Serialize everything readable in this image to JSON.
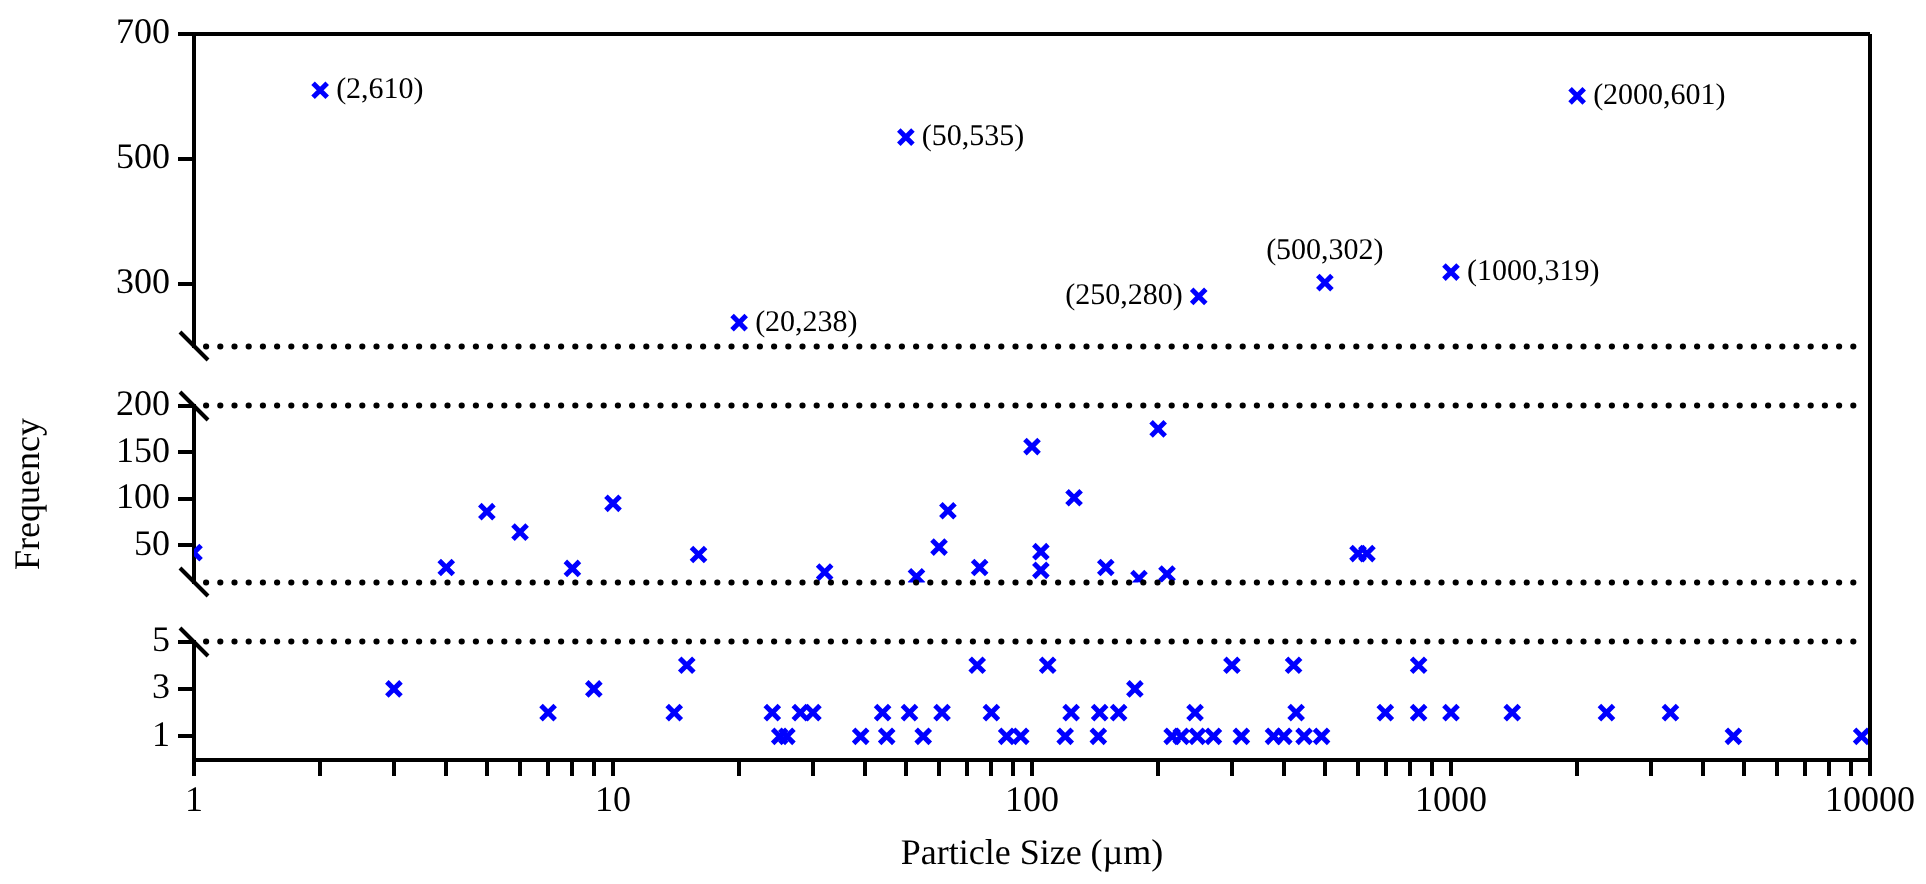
{
  "chart_data": [
    {
      "type": "scatter",
      "x": [
        2,
        20,
        50,
        250,
        500,
        1000,
        2000
      ],
      "values": [
        610,
        238,
        535,
        280,
        302,
        319,
        601
      ],
      "annotations": [
        {
          "text": "(2,610)",
          "x": 2,
          "y": 610
        },
        {
          "text": "(20,238)",
          "x": 20,
          "y": 238
        },
        {
          "text": "(50,535)",
          "x": 50,
          "y": 535
        },
        {
          "text": "(250,280)",
          "x": 250,
          "y": 280
        },
        {
          "text": "(500,302)",
          "x": 500,
          "y": 302
        },
        {
          "text": "(1000,319)",
          "x": 1000,
          "y": 319
        },
        {
          "text": "(2000,601)",
          "x": 2000,
          "y": 601
        }
      ],
      "color": "#0000ff",
      "marker": "cross",
      "log": "x",
      "xlim": [
        1,
        10000
      ],
      "xticks": [
        1,
        10,
        100,
        1000,
        10000
      ],
      "ylim": [
        200,
        700
      ],
      "yticks": [
        300,
        500,
        700
      ],
      "tick_labels": "y",
      "grid": false
    },
    {
      "type": "scatter",
      "x": [
        1,
        4,
        5,
        6,
        8,
        10,
        16,
        32,
        53,
        60,
        63,
        75,
        100,
        105,
        105,
        126,
        150,
        180,
        200,
        210,
        600,
        630
      ],
      "values": [
        42,
        26,
        86,
        64,
        25,
        95,
        40,
        21,
        16,
        48,
        87,
        26,
        156,
        43,
        23,
        101,
        26,
        14,
        175,
        19,
        41,
        41
      ],
      "color": "#0000ff",
      "marker": "cross",
      "log": "x",
      "xlim": [
        1,
        10000
      ],
      "xticks": [
        1,
        10,
        100,
        1000,
        10000
      ],
      "ylabel": "Frequency",
      "ylim": [
        10,
        200
      ],
      "yticks": [
        50,
        100,
        150,
        200
      ],
      "tick_labels": "y",
      "grid": false
    },
    {
      "type": "scatter",
      "x": [
        3,
        7,
        9,
        14,
        15,
        24,
        25,
        26,
        28,
        30,
        39,
        44,
        45,
        51,
        55,
        61,
        74,
        80,
        87,
        94,
        109,
        120,
        124,
        144,
        145,
        161,
        176,
        216,
        227,
        245,
        248,
        271,
        300,
        316,
        377,
        399,
        421,
        427,
        446,
        491,
        697,
        837,
        837,
        1000,
        1400,
        2350,
        3340,
        4720,
        9550
      ],
      "values": [
        3,
        2,
        3,
        2,
        4,
        2,
        1,
        1,
        2,
        2,
        1,
        2,
        1,
        2,
        1,
        2,
        4,
        2,
        1,
        1,
        4,
        1,
        2,
        1,
        2,
        2,
        3,
        1,
        1,
        2,
        1,
        1,
        4,
        1,
        1,
        1,
        4,
        2,
        1,
        1,
        2,
        4,
        2,
        2,
        2,
        2,
        2,
        1,
        1
      ],
      "color": "#0000ff",
      "marker": "cross",
      "log": "x",
      "xlabel": "Particle Size (µm)",
      "xlim": [
        1,
        10000
      ],
      "xticks": [
        1,
        {
          "value": 2,
          "label": null
        },
        {
          "value": 3,
          "label": null
        },
        {
          "value": 4,
          "label": null
        },
        {
          "value": 5,
          "label": null
        },
        {
          "value": 6,
          "label": null
        },
        {
          "value": 7,
          "label": null
        },
        {
          "value": 8,
          "label": null
        },
        {
          "value": 9,
          "label": null
        },
        10,
        {
          "value": 20,
          "label": null
        },
        {
          "value": 30,
          "label": null
        },
        {
          "value": 40,
          "label": null
        },
        {
          "value": 50,
          "label": null
        },
        {
          "value": 60,
          "label": null
        },
        {
          "value": 70,
          "label": null
        },
        {
          "value": 80,
          "label": null
        },
        {
          "value": 90,
          "label": null
        },
        100,
        {
          "value": 200,
          "label": null
        },
        {
          "value": 300,
          "label": null
        },
        {
          "value": 400,
          "label": null
        },
        {
          "value": 500,
          "label": null
        },
        {
          "value": 600,
          "label": null
        },
        {
          "value": 700,
          "label": null
        },
        {
          "value": 800,
          "label": null
        },
        {
          "value": 900,
          "label": null
        },
        1000,
        {
          "value": 2000,
          "label": null
        },
        {
          "value": 3000,
          "label": null
        },
        {
          "value": 4000,
          "label": null
        },
        {
          "value": 5000,
          "label": null
        },
        {
          "value": 6000,
          "label": null
        },
        {
          "value": 7000,
          "label": null
        },
        {
          "value": 8000,
          "label": null
        },
        {
          "value": 9000,
          "label": null
        },
        10000
      ],
      "ylim": [
        0,
        5
      ],
      "yticks": [
        1,
        3,
        5
      ],
      "grid": false
    }
  ]
}
